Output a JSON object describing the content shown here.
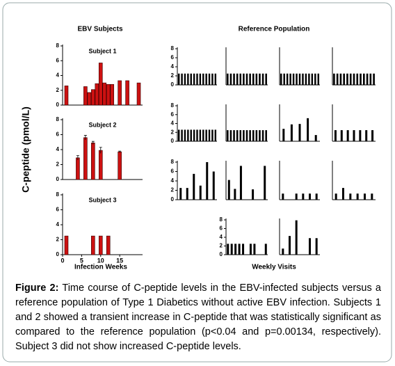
{
  "figure": {
    "left_title": "EBV Subjects",
    "right_title": "Reference Population",
    "y_label": "C-peptide (pmol/L)",
    "left_x_label": "Infection Weeks",
    "right_x_label": "Weekly Visits"
  },
  "caption": {
    "label": "Figure 2:",
    "text": " Time course of C-peptide levels in the EBV-infected subjects versus a reference population of Type 1 Diabetics without active EBV infection. Subjects 1 and 2 showed a transient increase in C-peptide that was statistically significant as compared to the reference population (p<0.04 and p=0.00134, respectively). Subject 3 did not show increased C-peptide levels."
  },
  "chart_data": [
    {
      "type": "bar",
      "title": "Subject 1",
      "x": [
        1,
        6,
        7,
        8,
        9,
        10,
        11,
        12,
        13,
        15,
        17,
        20
      ],
      "values": [
        2.6,
        2.5,
        1.7,
        2.1,
        2.9,
        5.7,
        3.0,
        2.8,
        2.8,
        3.3,
        3.3,
        3.0
      ],
      "color": "#cc1111",
      "xlim": [
        0,
        21
      ],
      "ylim": [
        0,
        8
      ],
      "yticks": [
        0,
        2,
        4,
        6,
        8
      ]
    },
    {
      "type": "bar",
      "title": "Subject 2",
      "x": [
        4,
        6,
        8,
        10,
        15
      ],
      "values": [
        2.9,
        5.6,
        4.9,
        3.9,
        3.7
      ],
      "errors": [
        0.3,
        0.3,
        0.2,
        0.4,
        0.1
      ],
      "color": "#cc1111",
      "xlim": [
        0,
        21
      ],
      "ylim": [
        0,
        8
      ],
      "yticks": [
        0,
        2,
        4,
        6,
        8
      ]
    },
    {
      "type": "bar",
      "title": "Subject 3",
      "x": [
        1,
        8,
        10,
        12
      ],
      "values": [
        2.5,
        2.5,
        2.5,
        2.5
      ],
      "color": "#cc1111",
      "xlim": [
        0,
        21
      ],
      "xticks": [
        0,
        5,
        10,
        15
      ],
      "ylim": [
        0,
        8
      ],
      "yticks": [
        0,
        2,
        4,
        6,
        8
      ]
    },
    {
      "type": "bar",
      "values": [
        2.5,
        2.5,
        2.5,
        2.5,
        2.5,
        2.5,
        2.5,
        2.5,
        2.5,
        2.5,
        2.5,
        2.5,
        2.5
      ],
      "color": "#000000",
      "ylim": [
        0,
        8
      ],
      "yticks": [
        0,
        2,
        4,
        6,
        8
      ]
    },
    {
      "type": "bar",
      "values": [
        2.5,
        2.5,
        2.5,
        2.5,
        2.5,
        2.5,
        2.5,
        2.5,
        2.5,
        2.5,
        2.5,
        2.5,
        2.5
      ],
      "color": "#000000",
      "ylim": [
        0,
        8
      ]
    },
    {
      "type": "bar",
      "values": [
        2.5,
        2.5,
        2.5,
        2.5,
        2.5,
        2.5,
        2.5,
        2.5,
        2.5,
        2.5,
        2.5,
        2.5,
        2.5
      ],
      "color": "#000000",
      "ylim": [
        0,
        8
      ]
    },
    {
      "type": "bar",
      "values": [
        2.5,
        2.5,
        2.5,
        2.5,
        2.5,
        2.5,
        2.5,
        2.5,
        2.5,
        2.5,
        2.5,
        2.5,
        2.5
      ],
      "color": "#000000",
      "ylim": [
        0,
        8
      ]
    },
    {
      "type": "bar",
      "values": [
        2.6,
        2.6,
        2.6,
        2.6,
        2.6,
        2.6,
        2.6,
        2.6,
        2.6,
        2.6,
        2.6,
        2.6,
        2.6
      ],
      "color": "#000000",
      "ylim": [
        0,
        8
      ],
      "yticks": [
        0,
        2,
        4,
        6,
        8
      ]
    },
    {
      "type": "bar",
      "values": [
        2.5,
        2.5,
        2.5,
        2.5,
        2.5,
        2.5,
        2.5,
        2.5,
        2.5,
        2.5,
        2.5,
        2.5,
        2.5
      ],
      "color": "#000000",
      "ylim": [
        0,
        8
      ]
    },
    {
      "type": "bar",
      "values": [
        2.8,
        3.8,
        3.9,
        5.2,
        1.4
      ],
      "color": "#000000",
      "ylim": [
        0,
        8
      ]
    },
    {
      "type": "bar",
      "values": [
        2.5,
        2.5,
        2.5,
        2.5,
        2.5,
        2.5,
        2.5
      ],
      "color": "#000000",
      "ylim": [
        0,
        8
      ]
    },
    {
      "type": "bar",
      "values": [
        2.5,
        2.5,
        5.5,
        3.0,
        8.0,
        6.0
      ],
      "color": "#000000",
      "ylim": [
        0,
        8
      ],
      "yticks": [
        0,
        2,
        4,
        6,
        8
      ]
    },
    {
      "type": "bar",
      "values": [
        4.2,
        2.3,
        7.2,
        null,
        2.2,
        null,
        7.2
      ],
      "color": "#000000",
      "ylim": [
        0,
        8
      ]
    },
    {
      "type": "bar",
      "values": [
        1.3,
        null,
        1.3,
        1.3,
        1.3,
        1.3
      ],
      "color": "#000000",
      "ylim": [
        0,
        8
      ]
    },
    {
      "type": "bar",
      "values": [
        1.3,
        2.5,
        1.3,
        1.3,
        1.3,
        1.3
      ],
      "color": "#000000",
      "ylim": [
        0,
        8
      ]
    },
    {
      "type": "bar",
      "values": [
        2.5,
        2.5,
        2.5,
        2.5,
        2.5,
        null,
        2.5,
        2.5,
        null,
        null,
        2.5
      ],
      "color": "#000000",
      "ylim": [
        0,
        8
      ],
      "yticks": [
        0,
        2,
        4,
        6,
        8
      ]
    },
    {
      "type": "bar",
      "values": [
        1.4,
        4.3,
        7.9,
        null,
        3.8,
        3.8
      ],
      "color": "#000000",
      "ylim": [
        0,
        8
      ]
    }
  ]
}
